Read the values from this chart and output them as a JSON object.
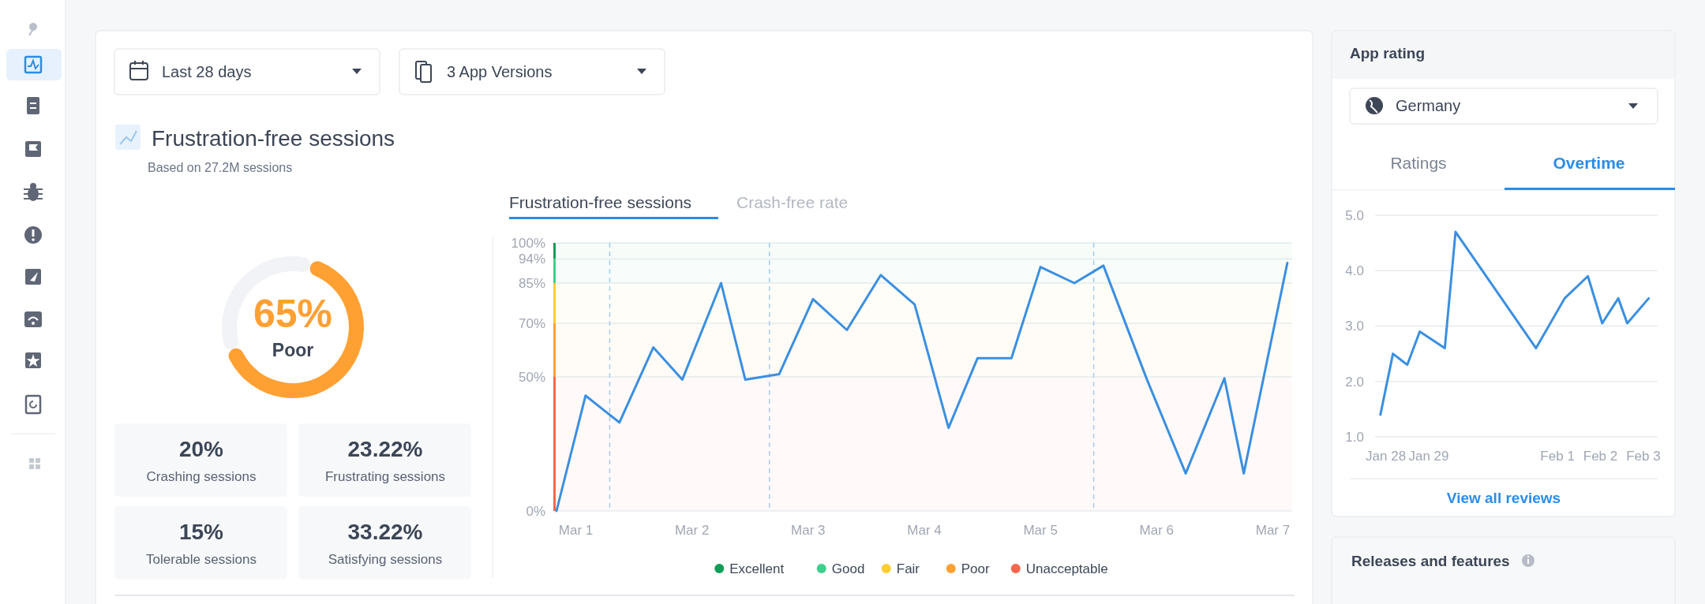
{
  "chart_data": [
    {
      "type": "donut",
      "title": "Frustration-free sessions",
      "subtitle": "Based on 27.2M sessions",
      "categories": [
        "Poor",
        null
      ],
      "values": [
        65,
        35
      ],
      "colors": [
        "#ffa033",
        "#f2f3f6"
      ],
      "value_labels": [
        "65%",
        null
      ]
    },
    {
      "type": "other",
      "annotations": [
        "Last 28 days",
        "3 App Versions",
        "20%",
        "Crashing sessions",
        "23.22%",
        "Frustrating sessions",
        "15%",
        "Tolerable sessions",
        "33.22%",
        "Satisfying sessions"
      ]
    },
    {
      "type": "line",
      "annotations": [
        "Frustration-free sessions",
        "Crash-free rate"
      ],
      "x": [
        "--02-28T20:00",
        "--03-01T02:00",
        "--03-01T09:00",
        "--03-01T16:00",
        "--03-01T22:00",
        "--03-02T06:00",
        "--03-02T11:00",
        "--03-02T18:00",
        "--03-03T01:00",
        "--03-03T08:00",
        "--03-03T15:00",
        "--03-03T22:00",
        "--03-04T05:00",
        "--03-04T11:00",
        "--03-04T18:00",
        "--03-05T00:00",
        "--03-05T07:00",
        "--03-05T13:00",
        "--03-05T22:00",
        "--03-06T06:00",
        "--03-06T14:00",
        "--03-06T18:00",
        "--03-07T03:00"
      ],
      "series": [
        {
          "color": "#3b8fe0",
          "values": [
            0,
            43,
            33,
            61,
            49,
            85,
            49,
            51,
            79,
            67.5,
            88,
            77,
            31,
            57,
            57,
            91,
            85,
            91.5,
            49,
            14,
            49.5,
            14,
            92.5
          ]
        }
      ],
      "xlim": [
        "--02-28T20:00",
        "--03-07T04:00"
      ],
      "xticks": [
        {
          "value": "--03-01",
          "label": "Mar 1"
        },
        {
          "value": "--03-02",
          "label": "Mar 2"
        },
        {
          "value": "--03-03",
          "label": "Mar 3"
        },
        {
          "value": "--03-04",
          "label": "Mar 4"
        },
        {
          "value": "--03-05",
          "label": "Mar 5"
        },
        {
          "value": "--03-06",
          "label": "Mar 6"
        },
        {
          "value": "--03-07",
          "label": "Mar 7"
        }
      ],
      "ylim": [
        0,
        100
      ],
      "yticks": [
        {
          "value": 0,
          "label": "0%"
        },
        {
          "value": 50,
          "label": "50%"
        },
        {
          "value": 70,
          "label": "70%"
        },
        {
          "value": 85,
          "label": "85%"
        },
        {
          "value": 94,
          "label": "94%"
        },
        {
          "value": 100,
          "label": "100%"
        }
      ],
      "grid": "y",
      "line_style": "solid",
      "marker": "none",
      "legend": "bottom",
      "bands": [
        {
          "axis": "y",
          "from": 94,
          "to": 100,
          "label": "Excellent",
          "color": "#0f9d58"
        },
        {
          "axis": "y",
          "from": 85,
          "to": 94,
          "label": "Good",
          "color": "#3ecf8e"
        },
        {
          "axis": "y",
          "from": 70,
          "to": 85,
          "label": "Fair",
          "color": "#ffcc33"
        },
        {
          "axis": "y",
          "from": 50,
          "to": 70,
          "label": "Poor",
          "color": "#ffa033"
        },
        {
          "axis": "y",
          "from": 0,
          "to": 50,
          "label": "Unacceptable",
          "color": "#f5664d"
        }
      ],
      "ref_lines": [
        {
          "axis": "x",
          "value": "--03-01T07:00",
          "color": "#a8cdf2",
          "line_style": "dashed"
        },
        {
          "axis": "x",
          "value": "--03-02T16:00",
          "color": "#a8cdf2",
          "line_style": "dashed"
        },
        {
          "axis": "x",
          "value": "--03-05T11:00",
          "color": "#a8cdf2",
          "line_style": "dashed"
        }
      ]
    },
    {
      "type": "line",
      "title": "App rating",
      "annotations": [
        "Germany",
        "Ratings",
        "Overtime",
        "View all reviews",
        "Releases and features"
      ],
      "x": [
        "--01-27T21:00",
        "--01-28T04:00",
        "--01-28T12:00",
        "--01-28T19:00",
        "--01-29T09:00",
        "--01-29T15:00",
        "--01-31T12:00",
        "--02-01T04:00",
        "--02-01T17:00",
        "--02-02T01:00",
        "--02-02T10:00",
        "--02-02T15:00",
        "--02-03T03:00"
      ],
      "series": [
        {
          "color": "#3b8fe0",
          "values": [
            1.4,
            2.5,
            2.3,
            2.9,
            2.6,
            4.7,
            2.6,
            3.5,
            3.9,
            3.05,
            3.5,
            3.05,
            3.5
          ]
        }
      ],
      "xlim": [
        "--01-27T18:00",
        "--02-03T08:00"
      ],
      "xticks": [
        {
          "value": "--01-28",
          "label": "Jan 28"
        },
        {
          "value": "--01-29",
          "label": "Jan 29"
        },
        {
          "value": "--02-01",
          "label": "Feb 1"
        },
        {
          "value": "--02-02",
          "label": "Feb 2"
        },
        {
          "value": "--02-03",
          "label": "Feb 3"
        }
      ],
      "ylim": [
        1,
        5
      ],
      "yticks": [
        {
          "value": 1,
          "label": "1.0"
        },
        {
          "value": 2,
          "label": "2.0"
        },
        {
          "value": 3,
          "label": "3.0"
        },
        {
          "value": 4,
          "label": "4.0"
        },
        {
          "value": 5,
          "label": "5.0"
        }
      ],
      "grid": "y",
      "line_style": "solid",
      "marker": "none"
    }
  ]
}
